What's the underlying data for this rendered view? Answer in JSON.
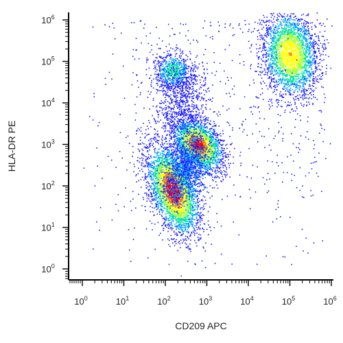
{
  "chart_data": {
    "type": "scatter",
    "subtype": "flow-cytometry density dot plot",
    "xlabel": "CD209 APC",
    "ylabel": "HLA-DR PE",
    "x_scale": "biexponential-log",
    "y_scale": "biexponential-log",
    "xlim": [
      -10,
      1000000
    ],
    "ylim": [
      -10,
      1000000
    ],
    "x_ticks": [
      {
        "base": "10",
        "exp": "0",
        "value": 1
      },
      {
        "base": "10",
        "exp": "1",
        "value": 10
      },
      {
        "base": "10",
        "exp": "2",
        "value": 100
      },
      {
        "base": "10",
        "exp": "3",
        "value": 1000
      },
      {
        "base": "10",
        "exp": "4",
        "value": 10000
      },
      {
        "base": "10",
        "exp": "5",
        "value": 100000
      },
      {
        "base": "10",
        "exp": "6",
        "value": 1000000
      }
    ],
    "y_ticks": [
      {
        "base": "10",
        "exp": "0",
        "value": 1
      },
      {
        "base": "10",
        "exp": "1",
        "value": 10
      },
      {
        "base": "10",
        "exp": "2",
        "value": 100
      },
      {
        "base": "10",
        "exp": "3",
        "value": 1000
      },
      {
        "base": "10",
        "exp": "4",
        "value": 10000
      },
      {
        "base": "10",
        "exp": "5",
        "value": 100000
      },
      {
        "base": "10",
        "exp": "6",
        "value": 1000000
      }
    ],
    "populations": [
      {
        "center_x": 150,
        "center_y": 80,
        "relative_density": "high"
      },
      {
        "center_x": 600,
        "center_y": 1000,
        "relative_density": "high"
      },
      {
        "center_x": 100000,
        "center_y": 150000,
        "relative_density": "medium"
      },
      {
        "center_x": 150,
        "center_y": 60000,
        "relative_density": "low"
      }
    ],
    "colormap": [
      "#1a1aff",
      "#00a0ff",
      "#00e0a0",
      "#9fff2f",
      "#ffff00",
      "#ff8000",
      "#ff0000"
    ],
    "grid": false,
    "legend": "none"
  }
}
